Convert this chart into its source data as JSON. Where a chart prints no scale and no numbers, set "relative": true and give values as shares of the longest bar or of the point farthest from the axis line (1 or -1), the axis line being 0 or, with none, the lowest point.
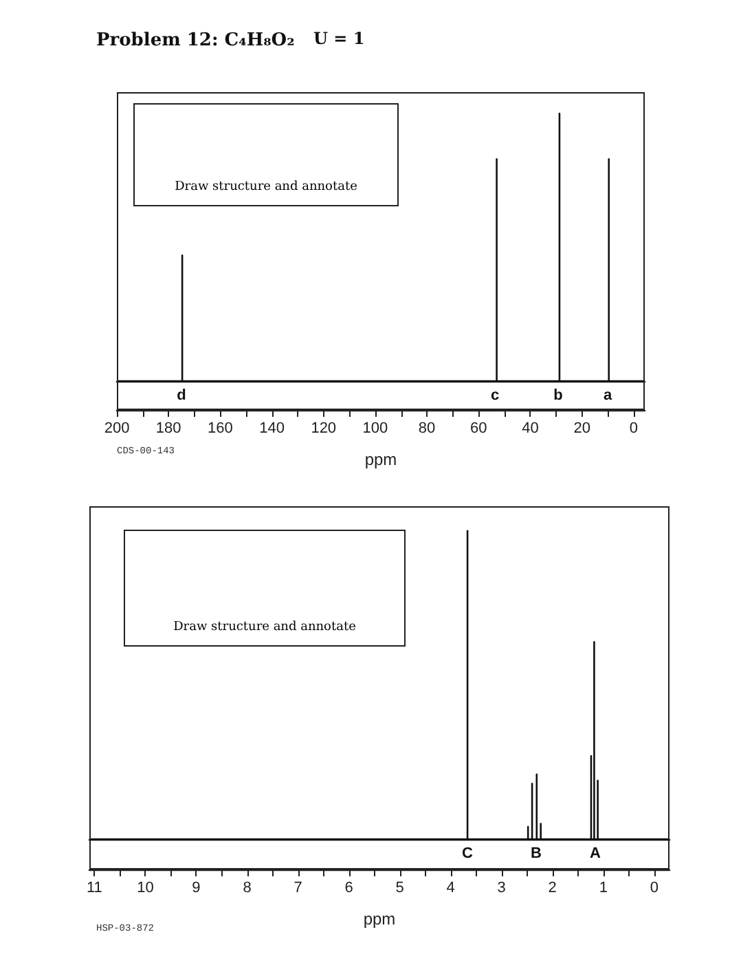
{
  "chart_data": [
    {
      "type": "line",
      "title": "Problem 12: C₄H₈O₂",
      "xlabel": "ppm",
      "relative": true,
      "grid": false,
      "marker": "none",
      "tick_labels": "x",
      "annotations": [
        "U = 1",
        "Draw structure and annotate",
        "CDS-00-143",
        "d",
        "c",
        "b",
        "a"
      ],
      "xlim": [
        200,
        -4.3
      ],
      "xticks": [
        200,
        180,
        160,
        140,
        120,
        100,
        80,
        60,
        40,
        20,
        0
      ],
      "series": [
        {
          "color": "#111111",
          "x": [
            200,
            174.7,
            174.7,
            174.7,
            53,
            53,
            53,
            28.7,
            28.7,
            28.7,
            9.6,
            9.6,
            9.6,
            -4.3
          ],
          "values": [
            0,
            0,
            0.47,
            0,
            0,
            0.83,
            0,
            0,
            1,
            0,
            0,
            0.83,
            0,
            0
          ]
        }
      ]
    },
    {
      "type": "line",
      "xlabel": "ppm",
      "relative": true,
      "grid": false,
      "marker": "none",
      "tick_labels": "x",
      "annotations": [
        "Draw structure and annotate",
        "HSP-03-872",
        "C",
        "B",
        "A"
      ],
      "xlim": [
        11.1,
        -0.3
      ],
      "xticks": [
        11,
        10,
        9,
        8,
        7,
        6,
        5,
        4,
        3,
        2,
        1,
        0
      ],
      "series": [
        {
          "color": "#111111",
          "x": [
            11.1,
            3.67,
            3.67,
            3.67,
            2.48,
            2.48,
            2.48,
            2.4,
            2.4,
            2.4,
            2.31,
            2.31,
            2.31,
            2.23,
            2.23,
            2.23,
            1.24,
            1.24,
            1.24,
            1.18,
            1.18,
            1.18,
            1.11,
            1.11,
            1.11,
            -0.3
          ],
          "values": [
            0,
            0,
            1,
            0,
            0,
            0.04,
            0,
            0,
            0.18,
            0,
            0,
            0.21,
            0,
            0,
            0.05,
            0,
            0,
            0.27,
            0,
            0,
            0.64,
            0,
            0,
            0.19,
            0,
            0
          ]
        }
      ]
    }
  ]
}
